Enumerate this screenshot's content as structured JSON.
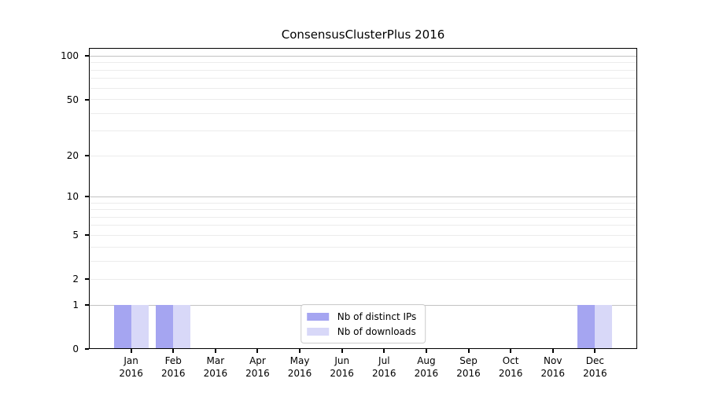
{
  "figure": {
    "background": "#ffffff"
  },
  "chart_data": {
    "type": "bar",
    "title": "ConsensusClusterPlus 2016",
    "x_tick_months": [
      "Jan",
      "Feb",
      "Mar",
      "Apr",
      "May",
      "Jun",
      "Jul",
      "Aug",
      "Sep",
      "Oct",
      "Nov",
      "Dec"
    ],
    "x_tick_year": "2016",
    "series": [
      {
        "name": "Nb of distinct IPs",
        "color": "#a5a5f1",
        "values": [
          1,
          1,
          0,
          0,
          0,
          0,
          0,
          0,
          0,
          0,
          0,
          1
        ]
      },
      {
        "name": "Nb of downloads",
        "color": "#d8d8f8",
        "values": [
          1,
          1,
          0,
          0,
          0,
          0,
          0,
          0,
          0,
          0,
          0,
          1
        ]
      }
    ],
    "yscale": "log1p",
    "ylim": [
      0,
      114
    ],
    "y_major_ticks": [
      0,
      1,
      2,
      5,
      10,
      20,
      50,
      100
    ],
    "y_gridlines_decade": [
      1,
      10,
      100
    ],
    "y_gridlines_light": [
      2,
      3,
      4,
      5,
      6,
      7,
      8,
      9,
      20,
      30,
      40,
      50,
      60,
      70,
      80,
      90
    ],
    "grid": true,
    "legend_position": "lower center"
  },
  "colors": {
    "axis": "#000000",
    "grid_decade": "#c2c2c2",
    "grid_light": "#ececec",
    "legend_border": "#cccccc",
    "legend_bg": "#ffffff",
    "text": "#000000"
  }
}
